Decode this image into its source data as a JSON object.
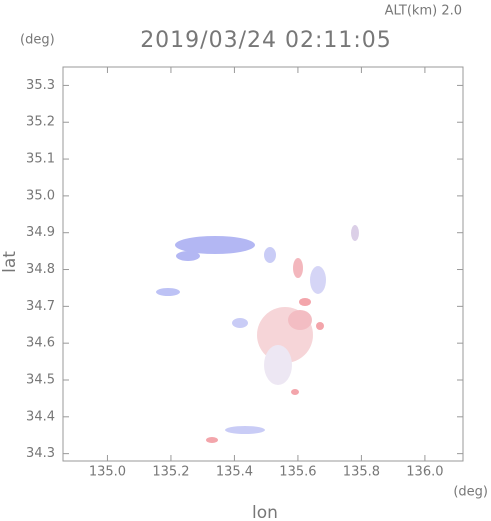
{
  "chart_data": {
    "type": "map",
    "title": "2019/03/24 02:11:05",
    "subtitle": "ALT(km) 2.0",
    "x_label": "lon",
    "y_label": "lat",
    "x_unit": "(deg)",
    "y_unit": "(deg)",
    "xlim": [
      134.86,
      136.12
    ],
    "ylim": [
      34.28,
      35.35
    ],
    "xticks": [
      {
        "value": 135.0,
        "label": "135.0"
      },
      135.2,
      135.4,
      135.6,
      135.8,
      {
        "value": 136.0,
        "label": "136.0"
      }
    ],
    "yticks": [
      34.3,
      34.4,
      34.5,
      34.6,
      34.7,
      34.8,
      34.9,
      {
        "value": 35.0,
        "label": "35.0"
      },
      35.1,
      35.2,
      35.3
    ]
  }
}
